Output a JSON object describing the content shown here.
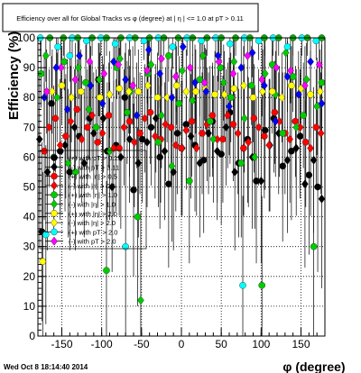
{
  "chart_data": {
    "type": "scatter",
    "title": "Efficiency over all for Global Tracks vs φ (degree) at | η | <= 1.0 at pT > 0.11",
    "xlabel": "φ (degree)",
    "ylabel": "Efficiency (%)",
    "xlim": [
      -180,
      180
    ],
    "ylim": [
      0,
      100
    ],
    "xticks": [
      -150,
      -100,
      -50,
      0,
      50,
      100,
      150
    ],
    "yticks": [
      0,
      10,
      20,
      30,
      40,
      50,
      60,
      70,
      80,
      90,
      100
    ],
    "grid": true,
    "legend_position": "left-middle",
    "series": [
      {
        "name": "(+) with pT > 0.11",
        "color": "#000000",
        "marker": "circle",
        "points": [
          [
            -175,
            35
          ],
          [
            -163,
            78
          ],
          [
            -152,
            62
          ],
          [
            -140,
            55
          ],
          [
            -128,
            67
          ],
          [
            -115,
            73
          ],
          [
            -104,
            86
          ],
          [
            -93,
            62
          ],
          [
            -82,
            64
          ],
          [
            -71,
            80
          ],
          [
            -60,
            49
          ],
          [
            -49,
            66
          ],
          [
            -38,
            70
          ],
          [
            -27,
            60
          ],
          [
            -16,
            51
          ],
          [
            -5,
            68
          ],
          [
            6,
            71
          ],
          [
            17,
            64
          ],
          [
            28,
            59
          ],
          [
            39,
            72
          ],
          [
            50,
            61
          ],
          [
            61,
            75
          ],
          [
            72,
            58
          ],
          [
            83,
            66
          ],
          [
            94,
            52
          ],
          [
            105,
            69
          ],
          [
            116,
            73
          ],
          [
            127,
            57
          ],
          [
            138,
            62
          ],
          [
            149,
            67
          ],
          [
            160,
            54
          ],
          [
            171,
            50
          ]
        ]
      },
      {
        "name": "(-) with pT > 0.11",
        "color": "#000000",
        "marker": "diamond",
        "points": [
          [
            -178,
            66
          ],
          [
            -168,
            55
          ],
          [
            -146,
            64
          ],
          [
            -134,
            70
          ],
          [
            -122,
            58
          ],
          [
            -110,
            68
          ],
          [
            -98,
            73
          ],
          [
            -87,
            50
          ],
          [
            -76,
            60
          ],
          [
            -65,
            66
          ],
          [
            -54,
            58
          ],
          [
            -43,
            65
          ],
          [
            -32,
            73
          ],
          [
            -21,
            62
          ],
          [
            -10,
            55
          ],
          [
            1,
            63
          ],
          [
            12,
            67
          ],
          [
            23,
            58
          ],
          [
            34,
            68
          ],
          [
            45,
            62
          ],
          [
            56,
            70
          ],
          [
            67,
            55
          ],
          [
            78,
            63
          ],
          [
            89,
            60
          ],
          [
            100,
            52
          ],
          [
            111,
            64
          ],
          [
            122,
            68
          ],
          [
            133,
            59
          ],
          [
            144,
            63
          ],
          [
            155,
            51
          ],
          [
            166,
            59
          ],
          [
            176,
            46
          ]
        ]
      },
      {
        "name": "(+) with |η| > 0.5",
        "color": "#ff0000",
        "marker": "circle",
        "points": [
          [
            -172,
            62
          ],
          [
            -158,
            73
          ],
          [
            -145,
            67
          ],
          [
            -131,
            76
          ],
          [
            -118,
            70
          ],
          [
            -105,
            65
          ],
          [
            -91,
            74
          ],
          [
            -78,
            63
          ],
          [
            -65,
            72
          ],
          [
            -52,
            68
          ],
          [
            -39,
            75
          ],
          [
            -26,
            66
          ],
          [
            -13,
            70
          ],
          [
            0,
            63
          ],
          [
            13,
            72
          ],
          [
            26,
            68
          ],
          [
            39,
            74
          ],
          [
            52,
            66
          ],
          [
            65,
            71
          ],
          [
            78,
            63
          ],
          [
            91,
            73
          ],
          [
            104,
            67
          ],
          [
            117,
            75
          ],
          [
            130,
            68
          ],
          [
            143,
            72
          ],
          [
            156,
            65
          ],
          [
            169,
            70
          ]
        ]
      },
      {
        "name": "(-) with |η| > 0.5",
        "color": "#ff0000",
        "marker": "diamond",
        "points": [
          [
            -166,
            70
          ],
          [
            -152,
            64
          ],
          [
            -139,
            72
          ],
          [
            -125,
            66
          ],
          [
            -112,
            74
          ],
          [
            -99,
            68
          ],
          [
            -85,
            63
          ],
          [
            -72,
            70
          ],
          [
            -59,
            65
          ],
          [
            -46,
            73
          ],
          [
            -33,
            67
          ],
          [
            -20,
            71
          ],
          [
            -7,
            64
          ],
          [
            6,
            69
          ],
          [
            19,
            63
          ],
          [
            32,
            71
          ],
          [
            45,
            66
          ],
          [
            58,
            74
          ],
          [
            71,
            68
          ],
          [
            84,
            65
          ],
          [
            97,
            70
          ],
          [
            110,
            64
          ],
          [
            123,
            72
          ],
          [
            136,
            66
          ],
          [
            149,
            70
          ],
          [
            162,
            63
          ],
          [
            175,
            68
          ]
        ]
      },
      {
        "name": "(+) with |η| > 1.0",
        "color": "#00cc00",
        "marker": "circle",
        "points": [
          [
            -176,
            88
          ],
          [
            -160,
            60
          ],
          [
            -147,
            92
          ],
          [
            -133,
            55
          ],
          [
            -120,
            85
          ],
          [
            -107,
            70
          ],
          [
            -94,
            22
          ],
          [
            -81,
            90
          ],
          [
            -68,
            75
          ],
          [
            -55,
            40
          ],
          [
            -42,
            88
          ],
          [
            -29,
            65
          ],
          [
            -16,
            94
          ],
          [
            -3,
            78
          ],
          [
            10,
            52
          ],
          [
            23,
            86
          ],
          [
            36,
            72
          ],
          [
            49,
            90
          ],
          [
            62,
            80
          ],
          [
            75,
            58
          ],
          [
            88,
            84
          ],
          [
            101,
            17
          ],
          [
            114,
            91
          ],
          [
            127,
            68
          ],
          [
            140,
            87
          ],
          [
            153,
            74
          ],
          [
            166,
            30
          ],
          [
            176,
            85
          ]
        ]
      },
      {
        "name": "(-) with |η| > 1.0",
        "color": "#00cc00",
        "marker": "diamond",
        "points": [
          [
            -170,
            94
          ],
          [
            -156,
            80
          ],
          [
            -142,
            58
          ],
          [
            -129,
            90
          ],
          [
            -116,
            76
          ],
          [
            -103,
            86
          ],
          [
            -90,
            62
          ],
          [
            -77,
            93
          ],
          [
            -64,
            82
          ],
          [
            -51,
            12
          ],
          [
            -38,
            91
          ],
          [
            -25,
            74
          ],
          [
            -12,
            57
          ],
          [
            1,
            89
          ],
          [
            14,
            79
          ],
          [
            27,
            94
          ],
          [
            40,
            66
          ],
          [
            53,
            85
          ],
          [
            66,
            92
          ],
          [
            79,
            73
          ],
          [
            92,
            60
          ],
          [
            105,
            88
          ],
          [
            118,
            81
          ],
          [
            131,
            95
          ],
          [
            144,
            70
          ],
          [
            157,
            86
          ],
          [
            170,
            77
          ]
        ]
      },
      {
        "name": "(+) with |η| > 2.0",
        "color": "#ffff00",
        "marker": "circle",
        "points": [
          [
            -174,
            25
          ],
          [
            -150,
            84
          ],
          [
            -126,
            82
          ],
          [
            -102,
            80
          ],
          [
            -78,
            83
          ],
          [
            -54,
            82
          ],
          [
            -30,
            80
          ],
          [
            -6,
            84
          ],
          [
            18,
            82
          ],
          [
            42,
            81
          ],
          [
            66,
            83
          ],
          [
            90,
            80
          ],
          [
            114,
            82
          ],
          [
            138,
            84
          ],
          [
            162,
            81
          ]
        ]
      },
      {
        "name": "(-) with |η| > 2.0",
        "color": "#ffff00",
        "marker": "diamond",
        "points": [
          [
            -162,
            82
          ],
          [
            -138,
            80
          ],
          [
            -114,
            84
          ],
          [
            -90,
            81
          ],
          [
            -66,
            82
          ],
          [
            -42,
            84
          ],
          [
            -18,
            80
          ],
          [
            6,
            82
          ],
          [
            30,
            83
          ],
          [
            54,
            81
          ],
          [
            78,
            84
          ],
          [
            102,
            82
          ],
          [
            126,
            80
          ],
          [
            150,
            83
          ],
          [
            174,
            82
          ]
        ]
      },
      {
        "name": "(+) with pT > 2.0",
        "color": "#00ffff",
        "marker": "circle",
        "points": [
          [
            -177,
            100
          ],
          [
            -155,
            97
          ],
          [
            -137,
            100
          ],
          [
            -119,
            99
          ],
          [
            -101,
            100
          ],
          [
            -83,
            98
          ],
          [
            -65,
            100
          ],
          [
            -47,
            99
          ],
          [
            -29,
            100
          ],
          [
            -11,
            97
          ],
          [
            7,
            100
          ],
          [
            25,
            99
          ],
          [
            43,
            100
          ],
          [
            61,
            98
          ],
          [
            79,
            100
          ],
          [
            97,
            99
          ],
          [
            115,
            100
          ],
          [
            133,
            97
          ],
          [
            151,
            100
          ],
          [
            169,
            99
          ],
          [
            -170,
            34
          ],
          [
            -70,
            30
          ],
          [
            77,
            17
          ],
          [
            -140,
            94
          ]
        ]
      },
      {
        "name": "(-) with pT > 2.0",
        "color": "#ff00ff",
        "marker": "diamond",
        "points": [
          [
            -169,
            82
          ],
          [
            -151,
            90
          ],
          [
            -133,
            86
          ],
          [
            -115,
            92
          ],
          [
            -97,
            88
          ],
          [
            -79,
            91
          ],
          [
            -61,
            84
          ],
          [
            -43,
            89
          ],
          [
            -25,
            93
          ],
          [
            -7,
            87
          ],
          [
            11,
            90
          ],
          [
            29,
            85
          ],
          [
            47,
            92
          ],
          [
            65,
            88
          ],
          [
            83,
            94
          ],
          [
            101,
            86
          ],
          [
            119,
            90
          ],
          [
            137,
            89
          ],
          [
            155,
            84
          ],
          [
            173,
            91
          ]
        ]
      },
      {
        "name": "",
        "color": "#0000ff",
        "marker": "diamond",
        "points": [
          [
            -172,
            80
          ],
          [
            -157,
            90
          ],
          [
            -143,
            76
          ],
          [
            -128,
            94
          ],
          [
            -114,
            84
          ],
          [
            -99,
            78
          ],
          [
            -85,
            92
          ],
          [
            -70,
            86
          ],
          [
            -56,
            74
          ],
          [
            -41,
            96
          ],
          [
            -27,
            88
          ],
          [
            -12,
            80
          ],
          [
            2,
            97
          ],
          [
            17,
            85
          ],
          [
            31,
            82
          ],
          [
            46,
            94
          ],
          [
            60,
            77
          ],
          [
            75,
            90
          ],
          [
            89,
            95
          ],
          [
            104,
            84
          ],
          [
            118,
            72
          ],
          [
            133,
            87
          ],
          [
            147,
            81
          ],
          [
            162,
            92
          ],
          [
            176,
            78
          ]
        ]
      },
      {
        "name": "",
        "color": "#00aa00",
        "marker": "circle",
        "points": [
          [
            -165,
            100
          ],
          [
            -148,
            100
          ],
          [
            -130,
            100
          ],
          [
            -112,
            100
          ],
          [
            -94,
            100
          ],
          [
            -76,
            100
          ],
          [
            -58,
            100
          ],
          [
            -40,
            100
          ],
          [
            -22,
            100
          ],
          [
            -4,
            100
          ],
          [
            14,
            100
          ],
          [
            32,
            100
          ],
          [
            50,
            100
          ],
          [
            68,
            100
          ],
          [
            86,
            100
          ],
          [
            104,
            100
          ],
          [
            122,
            100
          ],
          [
            140,
            100
          ],
          [
            158,
            100
          ],
          [
            176,
            100
          ]
        ]
      }
    ]
  },
  "footer": {
    "timestamp": "Wed Oct  8 18:14:40 2014"
  }
}
